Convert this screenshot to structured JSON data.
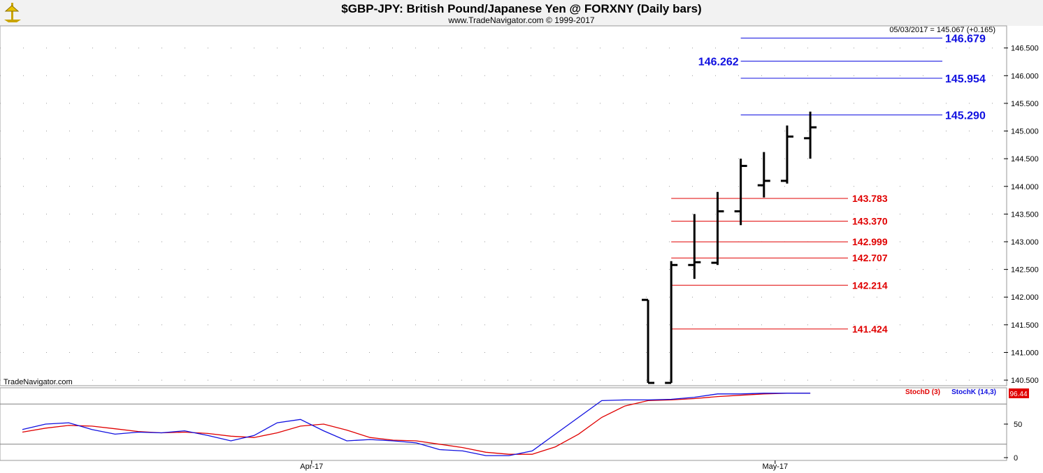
{
  "header": {
    "title": "$GBP-JPY:  British Pound/Japanese Yen @ FORXNY  (Daily bars)",
    "subtitle": "www.TradeNavigator.com © 1999-2017",
    "last_quote": "05/03/2017 = 145.067 (+0.165)",
    "watermark": "TradeNavigator.com"
  },
  "colors": {
    "bars": "#000000",
    "resistance": "#1010e0",
    "support": "#e00000",
    "stochD": "#e00000",
    "stochK": "#1010e0",
    "gridline": "#808080"
  },
  "chart_data": [
    {
      "type": "ohlc",
      "ylim": [
        140.4,
        146.9
      ],
      "yticks": [
        "140.500",
        "141.000",
        "141.500",
        "142.000",
        "142.500",
        "143.000",
        "143.500",
        "144.000",
        "144.500",
        "145.000",
        "145.500",
        "146.000",
        "146.500"
      ],
      "xticks": [
        {
          "label": "Apr-17",
          "index": 12
        },
        {
          "label": "May-17",
          "index": 32
        }
      ],
      "bars": [
        {
          "i": 27,
          "o": 141.95,
          "h": 141.95,
          "l": 140.45,
          "c": 140.45
        },
        {
          "i": 28,
          "o": 140.45,
          "h": 142.65,
          "l": 140.45,
          "c": 142.58
        },
        {
          "i": 29,
          "o": 142.58,
          "h": 143.5,
          "l": 142.33,
          "c": 142.63
        },
        {
          "i": 30,
          "o": 142.62,
          "h": 143.9,
          "l": 142.58,
          "c": 143.55
        },
        {
          "i": 31,
          "o": 143.55,
          "h": 144.5,
          "l": 143.3,
          "c": 144.37
        },
        {
          "i": 32,
          "o": 144.02,
          "h": 144.62,
          "l": 143.8,
          "c": 144.1
        },
        {
          "i": 33,
          "o": 144.1,
          "h": 145.1,
          "l": 144.05,
          "c": 144.9
        },
        {
          "i": 34,
          "o": 144.87,
          "h": 145.35,
          "l": 144.5,
          "c": 145.067
        }
      ],
      "resistance_levels": [
        {
          "value": 146.679,
          "label": "146.679",
          "start": 31,
          "label_side": "right"
        },
        {
          "value": 146.262,
          "label": "146.262",
          "start": 31,
          "label_side": "left"
        },
        {
          "value": 145.954,
          "label": "145.954",
          "start": 31,
          "label_side": "right"
        },
        {
          "value": 145.29,
          "label": "145.290",
          "start": 31,
          "label_side": "right"
        }
      ],
      "support_levels": [
        {
          "value": 143.783,
          "label": "143.783",
          "start": 28
        },
        {
          "value": 143.37,
          "label": "143.370",
          "start": 28
        },
        {
          "value": 142.999,
          "label": "142.999",
          "start": 28
        },
        {
          "value": 142.707,
          "label": "142.707",
          "start": 28
        },
        {
          "value": 142.214,
          "label": "142.214",
          "start": 28
        },
        {
          "value": 141.424,
          "label": "141.424",
          "start": 28
        }
      ]
    },
    {
      "type": "line",
      "ylim": [
        0,
        100
      ],
      "yticks": [
        "0",
        "50"
      ],
      "levels": [
        20,
        80
      ],
      "legend": [
        "StochD (3)",
        "StochK (14,3)"
      ],
      "last_value": "96.44",
      "series": [
        {
          "name": "StochK (14,3)",
          "x": [
            0,
            1,
            2,
            3,
            4,
            5,
            6,
            7,
            8,
            9,
            10,
            11,
            12,
            13,
            14,
            15,
            16,
            17,
            18,
            19,
            20,
            21,
            22,
            23,
            24,
            25,
            26,
            27,
            28,
            29,
            30,
            31,
            32,
            33,
            34
          ],
          "values": [
            42,
            50,
            52,
            42,
            35,
            38,
            37,
            40,
            33,
            25,
            33,
            52,
            57,
            40,
            25,
            27,
            25,
            22,
            12,
            10,
            3,
            3,
            10,
            35,
            60,
            85,
            86,
            86,
            87,
            90,
            95,
            95,
            96,
            96,
            96
          ]
        },
        {
          "name": "StochD (3)",
          "x": [
            0,
            1,
            2,
            3,
            4,
            5,
            6,
            7,
            8,
            9,
            10,
            11,
            12,
            13,
            14,
            15,
            16,
            17,
            18,
            19,
            20,
            21,
            22,
            23,
            24,
            25,
            26,
            27,
            28,
            29,
            30,
            31,
            32,
            33,
            34
          ],
          "values": [
            38,
            44,
            48,
            47,
            43,
            39,
            37,
            38,
            36,
            32,
            30,
            37,
            47,
            50,
            41,
            30,
            26,
            25,
            20,
            15,
            8,
            5,
            5,
            16,
            35,
            60,
            77,
            85,
            86,
            88,
            91,
            93,
            95,
            96,
            96
          ]
        }
      ]
    }
  ]
}
